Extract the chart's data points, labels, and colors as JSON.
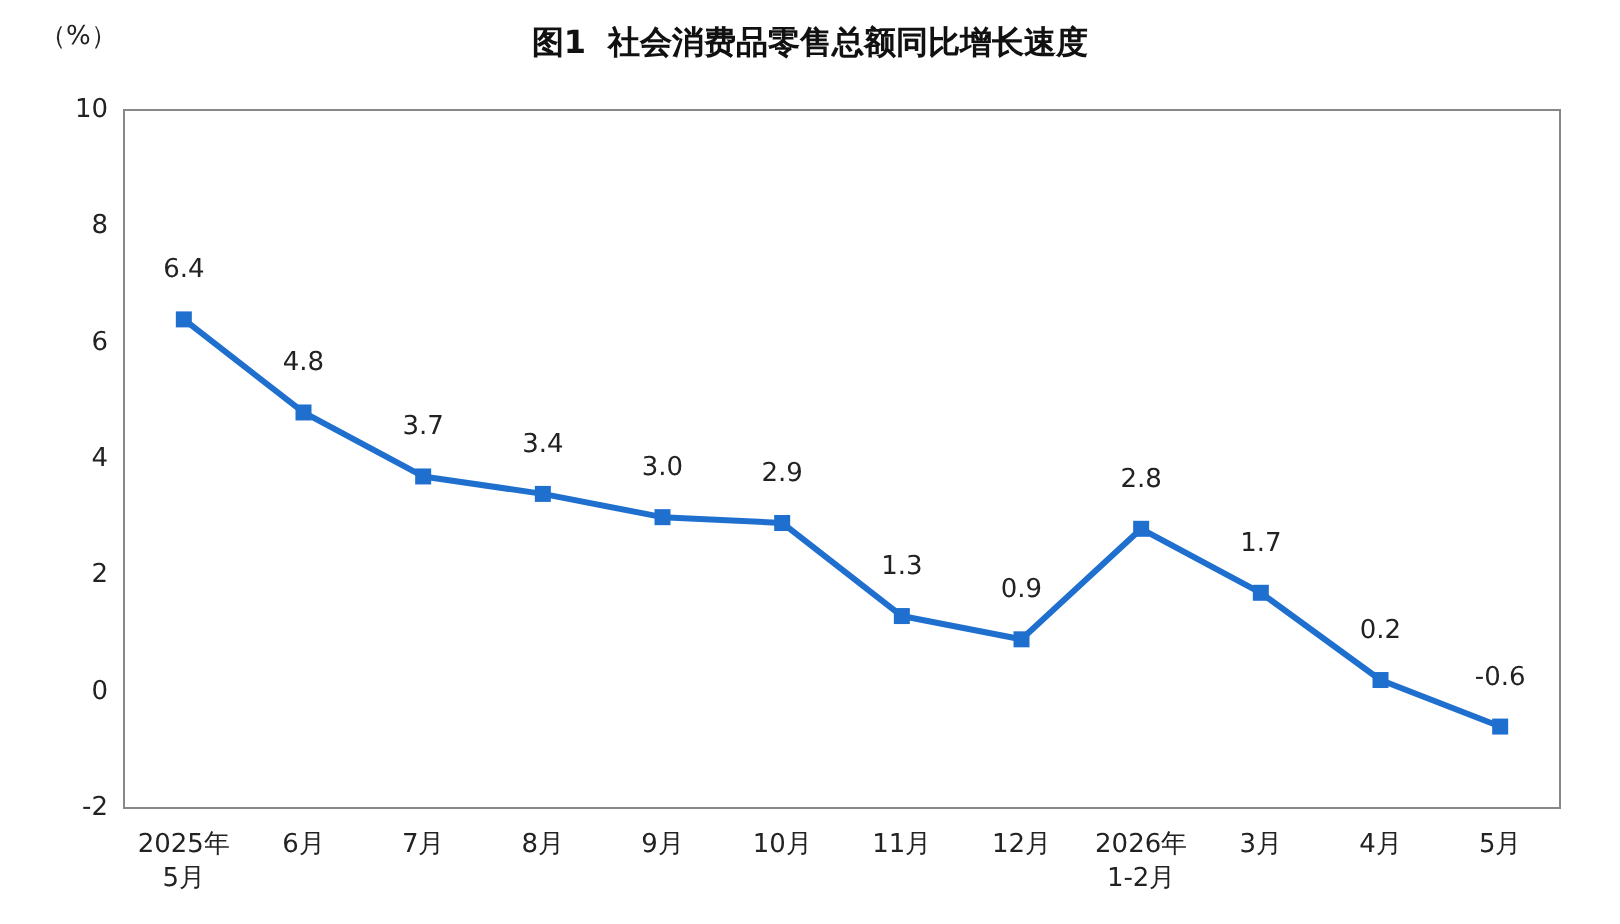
{
  "chart_data": {
    "type": "line",
    "title": "图1  社会消费品零售总额同比增长速度",
    "ylabel": "（%）",
    "categories": [
      "2025年\n5月",
      "6月",
      "7月",
      "8月",
      "9月",
      "10月",
      "11月",
      "12月",
      "2026年\n1-2月",
      "3月",
      "4月",
      "5月"
    ],
    "series": [
      {
        "color": "#1f6fce",
        "values": [
          6.4,
          4.8,
          3.7,
          3.4,
          3.0,
          2.9,
          1.3,
          0.9,
          2.8,
          1.7,
          0.2,
          -0.6
        ],
        "value_labels": [
          "6.4",
          "4.8",
          "3.7",
          "3.4",
          "3.0",
          "2.9",
          "1.3",
          "0.9",
          "2.8",
          "1.7",
          "0.2",
          "-0.6"
        ]
      }
    ],
    "ylim": [
      -2,
      10
    ],
    "yticks": [
      -2,
      0,
      2,
      4,
      6,
      8,
      10
    ],
    "grid": false,
    "marker": "square",
    "line_style": "solid"
  }
}
